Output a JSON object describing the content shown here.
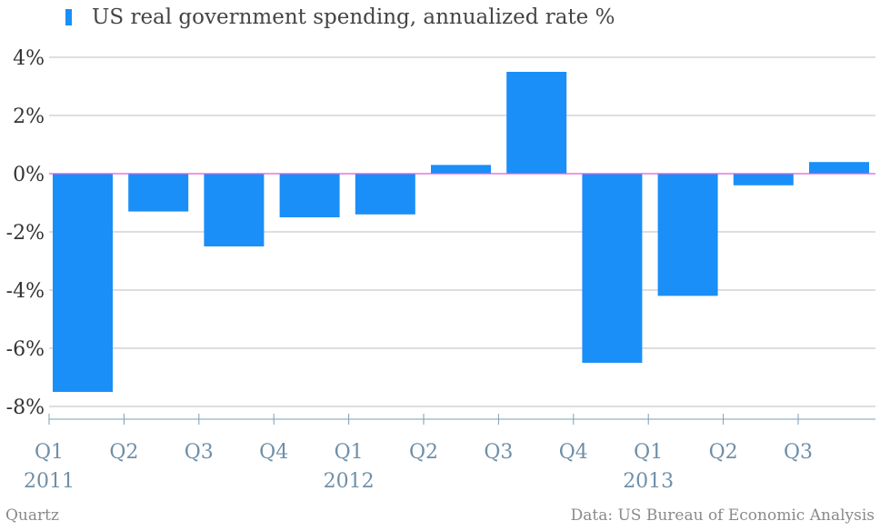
{
  "chart_data": {
    "type": "bar",
    "title": "",
    "xlabel": "",
    "ylabel": "",
    "legend": {
      "position": "top-left"
    },
    "series": [
      {
        "name": "US real government spending, annualized rate %",
        "color": "#1a8ff7",
        "values": [
          -7.5,
          -1.3,
          -2.5,
          -1.5,
          -1.4,
          0.3,
          3.5,
          -6.5,
          -4.2,
          -0.4,
          0.4
        ]
      }
    ],
    "categories": [
      "Q1 2011",
      "Q2 2011",
      "Q3 2011",
      "Q4 2011",
      "Q1 2012",
      "Q2 2012",
      "Q3 2012",
      "Q4 2012",
      "Q1 2013",
      "Q2 2013",
      "Q3 2013"
    ],
    "x_tick_labels": [
      "Q1",
      "Q2",
      "Q3",
      "Q4",
      "Q1",
      "Q2",
      "Q3",
      "Q4",
      "Q1",
      "Q2",
      "Q3"
    ],
    "year_labels": [
      {
        "label": "2011",
        "quarter_index": 0
      },
      {
        "label": "2012",
        "quarter_index": 4
      },
      {
        "label": "2013",
        "quarter_index": 8
      }
    ],
    "y_ticks": [
      "4%",
      "2%",
      "0%",
      "-2%",
      "-4%",
      "-6%",
      "-8%"
    ],
    "y_tick_values": [
      4,
      2,
      0,
      -2,
      -4,
      -6,
      -8
    ],
    "ylim": [
      -8,
      4
    ],
    "grid": true,
    "zero_line_color": "#e05ad8"
  },
  "footer": {
    "source": "Quartz",
    "credit": "Data: US Bureau of Economic Analysis"
  }
}
